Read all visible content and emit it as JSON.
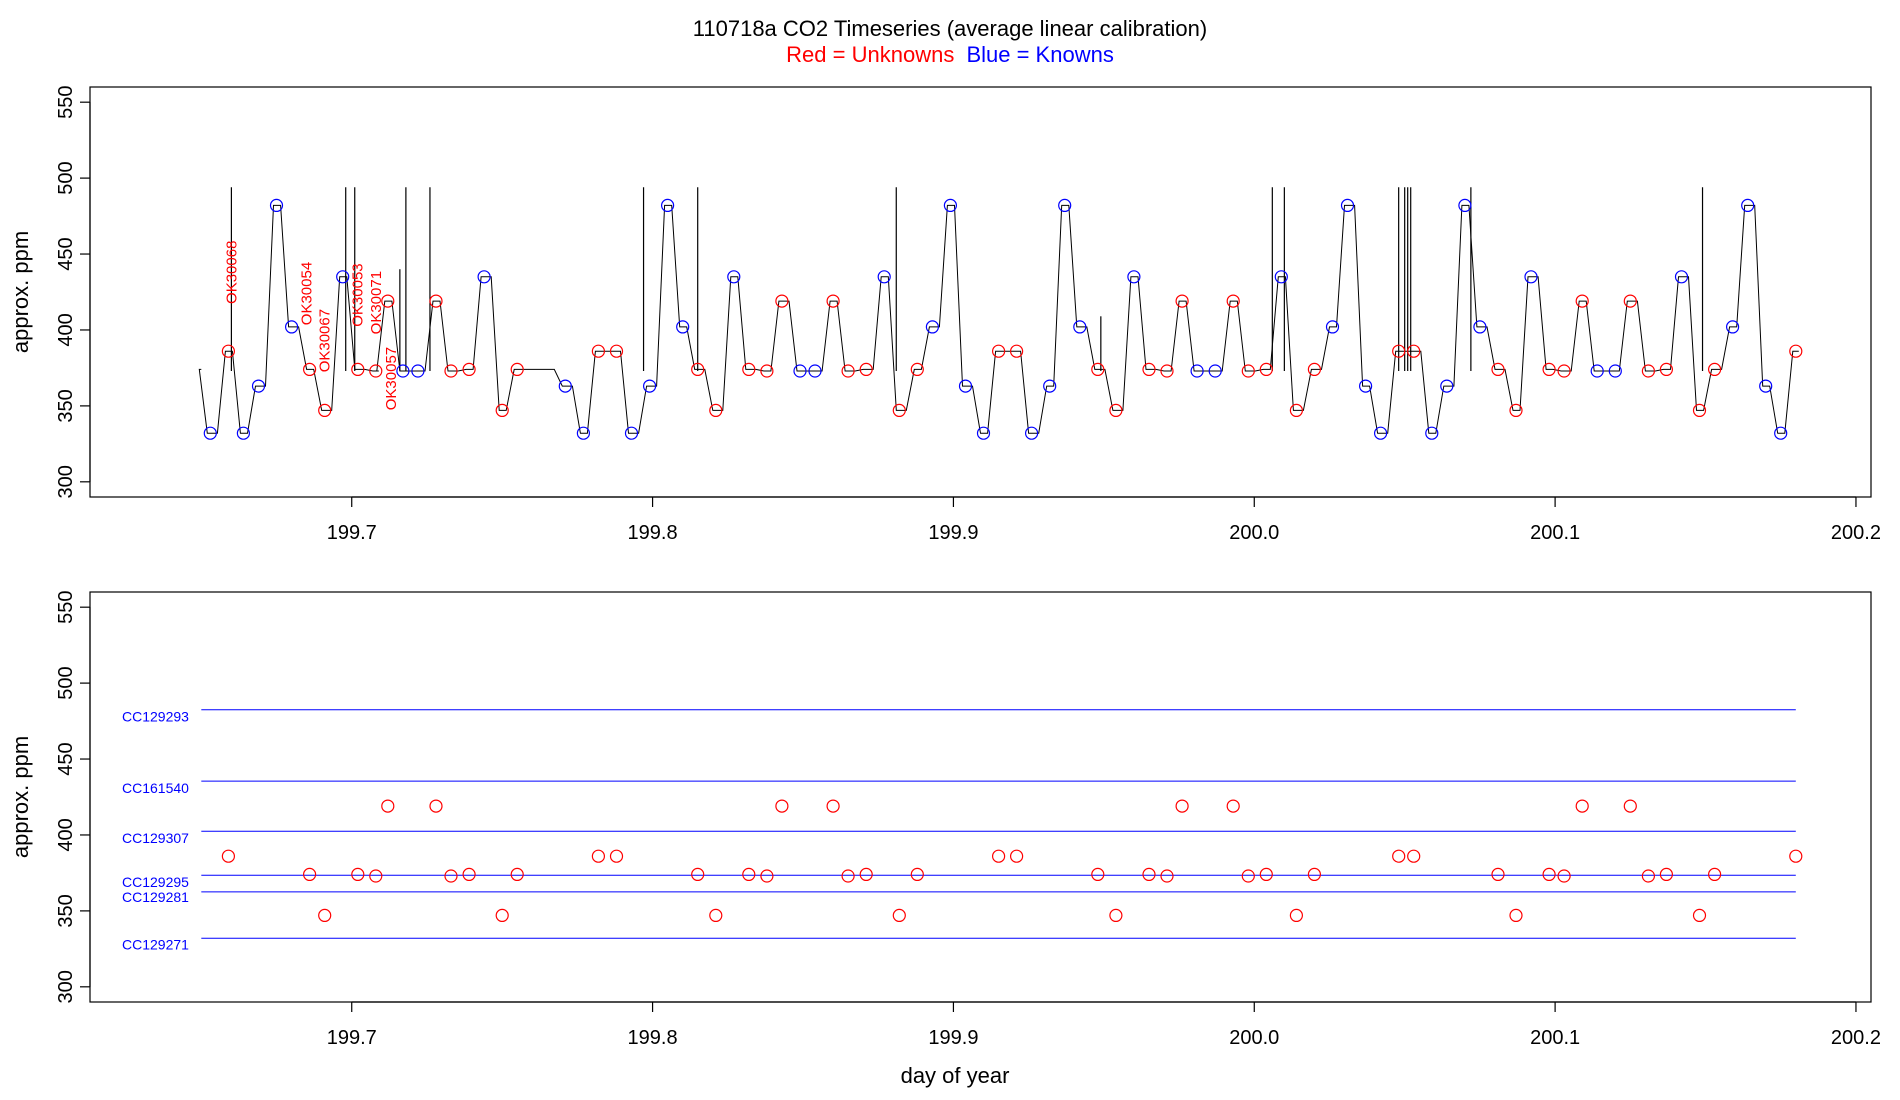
{
  "header": {
    "title": "110718a   CO2 Timeseries (average linear calibration)",
    "legend_unknowns": "Red = Unknowns",
    "legend_knowns": "Blue = Knowns"
  },
  "colors": {
    "unknown": "#ff0000",
    "known": "#0000ff",
    "trace": "#000000",
    "axis": "#000000"
  },
  "chart_data": [
    {
      "type": "line",
      "name": "timeseries",
      "ylabel": "approx. ppm",
      "xlim": [
        199.613,
        200.205
      ],
      "ylim": [
        290,
        560
      ],
      "xticks": [
        199.7,
        199.8,
        199.9,
        200.0,
        200.1,
        200.2
      ],
      "xtick_labels": [
        "199.7",
        "199.8",
        "199.9",
        "200.0",
        "200.1",
        "200.2"
      ],
      "yticks": [
        300,
        350,
        400,
        450,
        500,
        550
      ],
      "ytick_labels": [
        "300",
        "350",
        "400",
        "450",
        "500",
        "550"
      ],
      "knowns": [
        [
          199.653,
          332
        ],
        [
          199.664,
          332
        ],
        [
          199.669,
          363
        ],
        [
          199.675,
          482
        ],
        [
          199.68,
          402
        ],
        [
          199.697,
          435
        ],
        [
          199.717,
          373
        ],
        [
          199.722,
          373
        ],
        [
          199.744,
          435
        ],
        [
          199.771,
          363
        ],
        [
          199.777,
          332
        ],
        [
          199.793,
          332
        ],
        [
          199.799,
          363
        ],
        [
          199.805,
          482
        ],
        [
          199.81,
          402
        ],
        [
          199.827,
          435
        ],
        [
          199.849,
          373
        ],
        [
          199.854,
          373
        ],
        [
          199.877,
          435
        ],
        [
          199.893,
          402
        ],
        [
          199.899,
          482
        ],
        [
          199.904,
          363
        ],
        [
          199.91,
          332
        ],
        [
          199.926,
          332
        ],
        [
          199.932,
          363
        ],
        [
          199.937,
          482
        ],
        [
          199.942,
          402
        ],
        [
          199.96,
          435
        ],
        [
          199.981,
          373
        ],
        [
          199.987,
          373
        ],
        [
          200.009,
          435
        ],
        [
          200.026,
          402
        ],
        [
          200.031,
          482
        ],
        [
          200.037,
          363
        ],
        [
          200.042,
          332
        ],
        [
          200.059,
          332
        ],
        [
          200.064,
          363
        ],
        [
          200.07,
          482
        ],
        [
          200.075,
          402
        ],
        [
          200.092,
          435
        ],
        [
          200.114,
          373
        ],
        [
          200.12,
          373
        ],
        [
          200.142,
          435
        ],
        [
          200.159,
          402
        ],
        [
          200.164,
          482
        ],
        [
          200.17,
          363
        ],
        [
          200.175,
          332
        ]
      ],
      "unknowns": [
        [
          199.659,
          386
        ],
        [
          199.686,
          374
        ],
        [
          199.691,
          347
        ],
        [
          199.702,
          374
        ],
        [
          199.708,
          373
        ],
        [
          199.712,
          419
        ],
        [
          199.728,
          419
        ],
        [
          199.733,
          373
        ],
        [
          199.739,
          374
        ],
        [
          199.75,
          347
        ],
        [
          199.755,
          374
        ],
        [
          199.782,
          386
        ],
        [
          199.788,
          386
        ],
        [
          199.815,
          374
        ],
        [
          199.821,
          347
        ],
        [
          199.832,
          374
        ],
        [
          199.838,
          373
        ],
        [
          199.843,
          419
        ],
        [
          199.86,
          419
        ],
        [
          199.865,
          373
        ],
        [
          199.871,
          374
        ],
        [
          199.882,
          347
        ],
        [
          199.888,
          374
        ],
        [
          199.915,
          386
        ],
        [
          199.921,
          386
        ],
        [
          199.948,
          374
        ],
        [
          199.954,
          347
        ],
        [
          199.965,
          374
        ],
        [
          199.971,
          373
        ],
        [
          199.976,
          419
        ],
        [
          199.993,
          419
        ],
        [
          199.998,
          373
        ],
        [
          200.004,
          374
        ],
        [
          200.014,
          347
        ],
        [
          200.02,
          374
        ],
        [
          200.048,
          386
        ],
        [
          200.053,
          386
        ],
        [
          200.081,
          374
        ],
        [
          200.087,
          347
        ],
        [
          200.098,
          374
        ],
        [
          200.103,
          373
        ],
        [
          200.109,
          419
        ],
        [
          200.125,
          419
        ],
        [
          200.131,
          373
        ],
        [
          200.137,
          374
        ],
        [
          200.148,
          347
        ],
        [
          200.153,
          374
        ],
        [
          200.18,
          386
        ]
      ],
      "spikes": [
        [
          199.66,
          494
        ],
        [
          199.698,
          494
        ],
        [
          199.701,
          494
        ],
        [
          199.718,
          494
        ],
        [
          199.726,
          494
        ],
        [
          199.716,
          440
        ],
        [
          199.797,
          494
        ],
        [
          199.815,
          494
        ],
        [
          199.881,
          494
        ],
        [
          199.949,
          409
        ],
        [
          200.006,
          494
        ],
        [
          200.01,
          494
        ],
        [
          200.048,
          494
        ],
        [
          200.05,
          494
        ],
        [
          200.051,
          494
        ],
        [
          200.052,
          494
        ],
        [
          200.072,
          494
        ],
        [
          200.149,
          494
        ]
      ],
      "annotations": [
        {
          "label": "OK30068",
          "x": 199.66,
          "y": 438
        },
        {
          "label": "OK30054",
          "x": 199.685,
          "y": 424
        },
        {
          "label": "OK30067",
          "x": 199.691,
          "y": 393
        },
        {
          "label": "OK30053",
          "x": 199.702,
          "y": 423
        },
        {
          "label": "OK30071",
          "x": 199.708,
          "y": 418
        },
        {
          "label": "OK30057",
          "x": 199.713,
          "y": 368
        }
      ]
    },
    {
      "type": "scatter",
      "name": "calibration",
      "xlabel": "day of year",
      "ylabel": "approx. ppm",
      "xlim": [
        199.613,
        200.205
      ],
      "ylim": [
        290,
        560
      ],
      "xticks": [
        199.7,
        199.8,
        199.9,
        200.0,
        200.1,
        200.2
      ],
      "xtick_labels": [
        "199.7",
        "199.8",
        "199.9",
        "200.0",
        "200.1",
        "200.2"
      ],
      "yticks": [
        300,
        350,
        400,
        450,
        500,
        550
      ],
      "ytick_labels": [
        "300",
        "350",
        "400",
        "450",
        "500",
        "550"
      ],
      "reference_lines": [
        {
          "label": "CC129293",
          "y": 482.5
        },
        {
          "label": "CC161540",
          "y": 435.5
        },
        {
          "label": "CC129307",
          "y": 402.5
        },
        {
          "label": "CC129295",
          "y": 373.5
        },
        {
          "label": "CC129281",
          "y": 362.5
        },
        {
          "label": "CC129271",
          "y": 332.0
        }
      ],
      "ref_xrange": [
        199.65,
        200.18
      ],
      "ref_label_y": [
        478,
        431,
        398,
        369,
        359,
        328
      ]
    }
  ]
}
